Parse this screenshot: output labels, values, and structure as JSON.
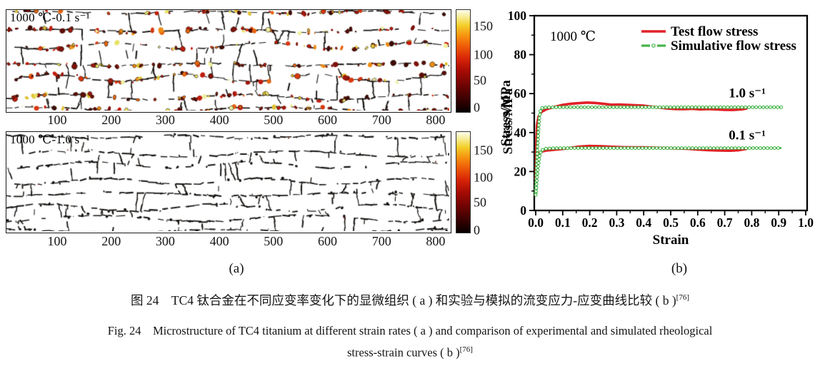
{
  "figure": {
    "panel_a": {
      "panel_label": "(a)",
      "micrographs": [
        {
          "label": "1000 ℃-0.1 s⁻¹"
        },
        {
          "label": "1000 ℃-1.0 s⁻¹"
        }
      ],
      "x_ticks": [
        "100",
        "200",
        "300",
        "400",
        "500",
        "600",
        "700",
        "800"
      ],
      "colorbar_ticks": [
        "150",
        "100",
        "50",
        "0"
      ],
      "colorbar_label": "Stress/MPa"
    },
    "panel_b": {
      "panel_label": "(b)"
    }
  },
  "chart_data": {
    "type": "line",
    "title": "",
    "xlabel": "Strain",
    "ylabel": "Stress/MPa",
    "xlim": [
      0.0,
      1.0
    ],
    "ylim": [
      0,
      100
    ],
    "x_ticks": [
      "0.0",
      "0.1",
      "0.2",
      "0.3",
      "0.4",
      "0.5",
      "0.6",
      "0.7",
      "0.8",
      "0.9",
      "1.0"
    ],
    "y_ticks": [
      "0",
      "20",
      "40",
      "60",
      "80",
      "100"
    ],
    "x_minor_step": 0.05,
    "y_minor_step": 10,
    "grid": false,
    "inset_label": "1000 ℃",
    "legend_position": "top-right",
    "legend": [
      {
        "label": "Test flow stress",
        "color": "#e22028",
        "style": "solid"
      },
      {
        "label": "Simulative flow stress",
        "color": "#44b449",
        "style": "dash-dot-circle"
      }
    ],
    "curve_annotations": [
      {
        "text": "1.0 s⁻¹",
        "x": 0.715,
        "y": 58.0
      },
      {
        "text": "0.1 s⁻¹",
        "x": 0.715,
        "y": 36.5
      }
    ],
    "series": [
      {
        "name": "Test flow stress 1.0 s-1",
        "role": "test",
        "strain_rate": "1.0 s⁻¹",
        "color": "#e22028",
        "points": [
          [
            0.0,
            16
          ],
          [
            0.002,
            34
          ],
          [
            0.005,
            44
          ],
          [
            0.01,
            48
          ],
          [
            0.02,
            50.5
          ],
          [
            0.04,
            52
          ],
          [
            0.07,
            53.2
          ],
          [
            0.1,
            54.2
          ],
          [
            0.13,
            54.8
          ],
          [
            0.16,
            55.1
          ],
          [
            0.19,
            55.4
          ],
          [
            0.22,
            55.2
          ],
          [
            0.25,
            54.8
          ],
          [
            0.28,
            54.3
          ],
          [
            0.31,
            54.4
          ],
          [
            0.34,
            54.2
          ],
          [
            0.37,
            54.0
          ],
          [
            0.4,
            53.8
          ],
          [
            0.43,
            53.3
          ],
          [
            0.46,
            52.8
          ],
          [
            0.49,
            52.3
          ],
          [
            0.52,
            52.1
          ],
          [
            0.55,
            52.0
          ],
          [
            0.58,
            52.2
          ],
          [
            0.61,
            51.9
          ],
          [
            0.64,
            52.1
          ],
          [
            0.67,
            51.9
          ],
          [
            0.7,
            51.7
          ],
          [
            0.73,
            51.6
          ],
          [
            0.76,
            51.9
          ],
          [
            0.78,
            52.3
          ]
        ]
      },
      {
        "name": "Simulative flow stress 1.0 s-1",
        "role": "simulative",
        "strain_rate": "1.0 s⁻¹",
        "color": "#44b449",
        "points": [
          [
            0.0,
            9
          ],
          [
            0.003,
            20
          ],
          [
            0.006,
            30
          ],
          [
            0.01,
            41
          ],
          [
            0.014,
            48
          ],
          [
            0.018,
            51.5
          ],
          [
            0.025,
            52.8
          ],
          [
            0.05,
            53
          ],
          [
            0.91,
            53
          ]
        ]
      },
      {
        "name": "Test flow stress 0.1 s-1",
        "role": "test",
        "strain_rate": "0.1 s⁻¹",
        "color": "#e22028",
        "points": [
          [
            0.0,
            8
          ],
          [
            0.003,
            20
          ],
          [
            0.006,
            26
          ],
          [
            0.012,
            29.5
          ],
          [
            0.02,
            30.2
          ],
          [
            0.04,
            30.8
          ],
          [
            0.07,
            31.2
          ],
          [
            0.1,
            31.6
          ],
          [
            0.13,
            32.2
          ],
          [
            0.16,
            32.8
          ],
          [
            0.2,
            33.1
          ],
          [
            0.24,
            33.0
          ],
          [
            0.28,
            32.7
          ],
          [
            0.32,
            32.5
          ],
          [
            0.36,
            32.4
          ],
          [
            0.4,
            32.4
          ],
          [
            0.44,
            32.2
          ],
          [
            0.48,
            32.1
          ],
          [
            0.52,
            31.9
          ],
          [
            0.56,
            31.7
          ],
          [
            0.6,
            31.3
          ],
          [
            0.64,
            31.0
          ],
          [
            0.68,
            30.8
          ],
          [
            0.72,
            30.7
          ],
          [
            0.75,
            30.9
          ],
          [
            0.78,
            31.6
          ]
        ]
      },
      {
        "name": "Simulative flow stress 0.1 s-1",
        "role": "simulative",
        "strain_rate": "0.1 s⁻¹",
        "color": "#44b449",
        "points": [
          [
            0.0,
            8
          ],
          [
            0.004,
            15
          ],
          [
            0.008,
            21
          ],
          [
            0.012,
            26
          ],
          [
            0.016,
            29
          ],
          [
            0.022,
            31
          ],
          [
            0.04,
            31.8
          ],
          [
            0.08,
            32
          ],
          [
            0.91,
            32
          ]
        ]
      }
    ]
  },
  "caption": {
    "line1_zh": "图 24　TC4 钛合金在不同应变率变化下的显微组织 ( a ) 和实验与模拟的流变应力-应变曲线比较 ( b )",
    "line2_en": "Fig. 24　Microstructure of TC4 titanium at different strain rates ( a ) and comparison of experimental and simulated rheological",
    "line3_en": "stress-strain curves ( b )",
    "ref_sup": "[76]"
  },
  "colors": {
    "test_curve": "#e22028",
    "simulative_curve": "#44b449",
    "axis": "#000000",
    "colorbar_bottom": "#050000",
    "colorbar_top": "#fffef0"
  }
}
